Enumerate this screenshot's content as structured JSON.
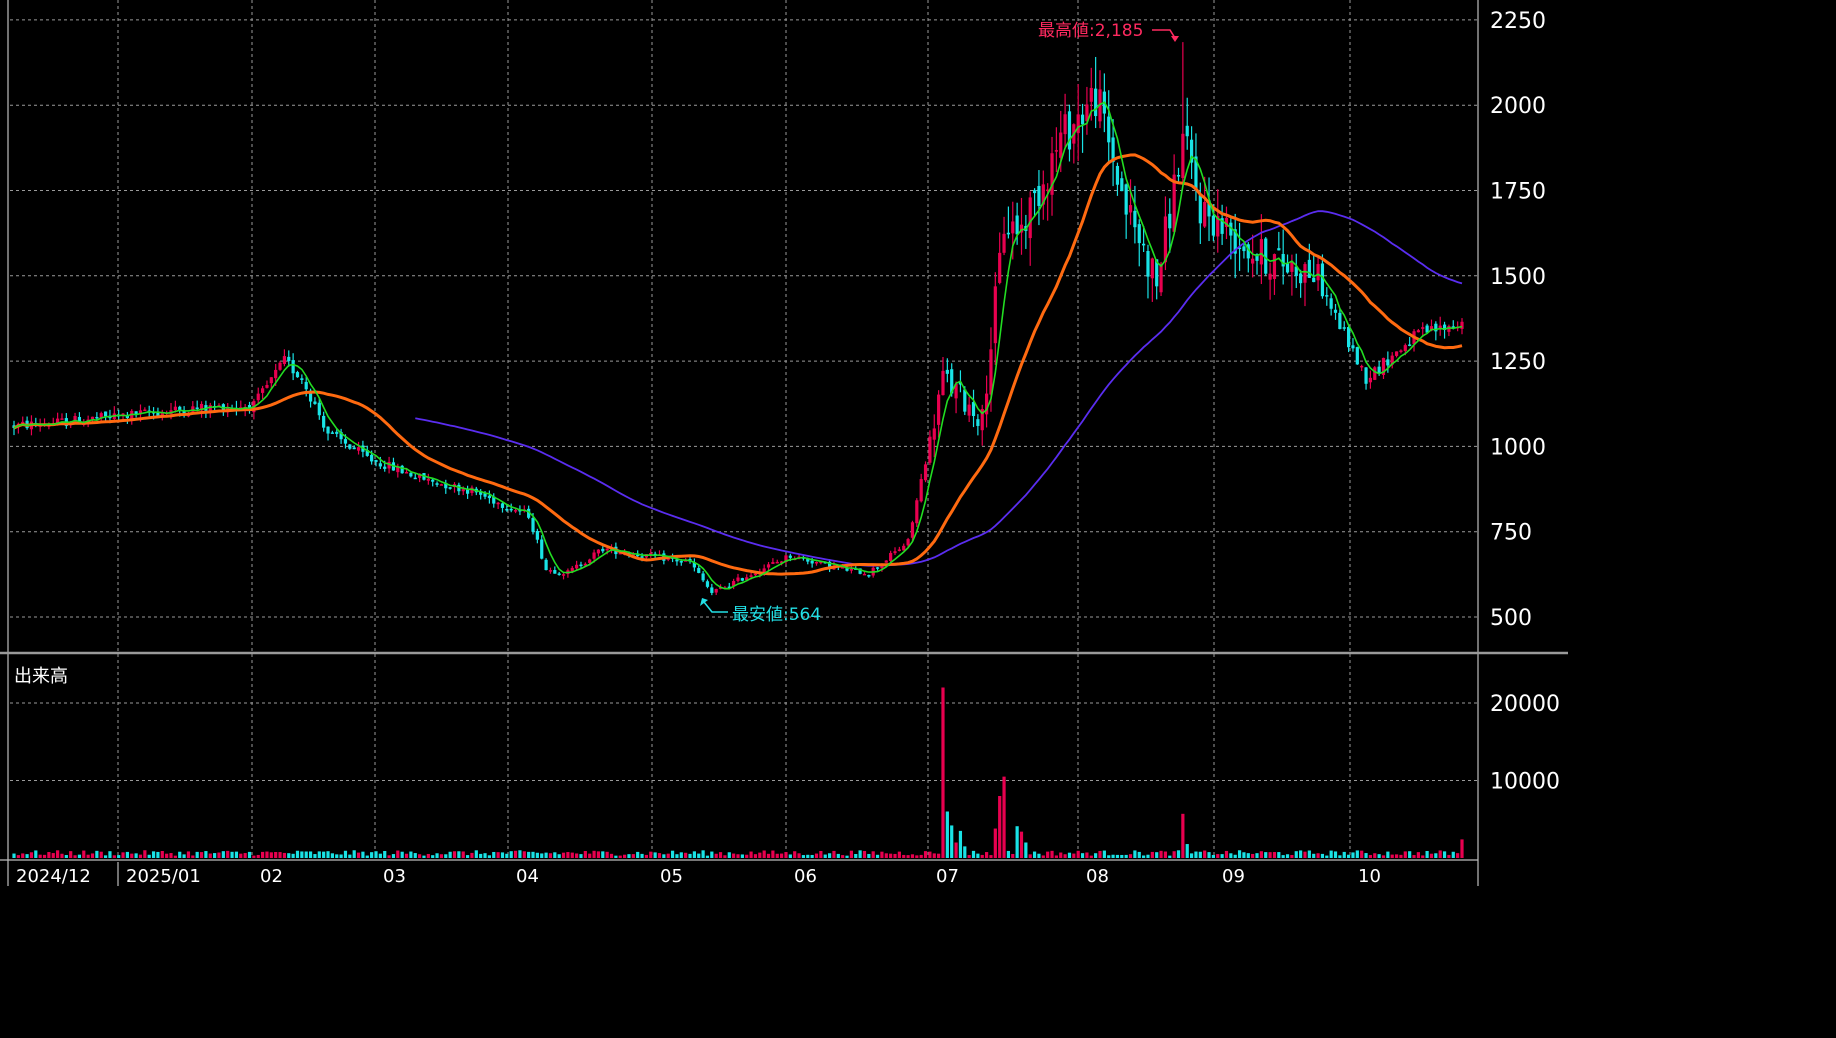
{
  "chart_data": {
    "type": "candlestick",
    "price_axis": {
      "ylim": [
        400,
        2300
      ],
      "ticks": [
        500,
        750,
        1000,
        1250,
        1500,
        1750,
        2000,
        2250
      ]
    },
    "volume_axis": {
      "ylim": [
        0,
        22000
      ],
      "ticks": [
        10000,
        20000
      ]
    },
    "volume_panel_title": "出来高",
    "x_labels": [
      "2024/12",
      "2025/01",
      "02",
      "03",
      "04",
      "05",
      "06",
      "07",
      "08",
      "09",
      "10"
    ],
    "annotations": {
      "high_label": "最高値:2,185",
      "low_label": "最安値:564"
    },
    "colors": {
      "up": "#e8004f",
      "down": "#19e3e6",
      "ma_short": "#22dd22",
      "ma_mid": "#ff6a10",
      "ma_long": "#5a2df0",
      "high_label": "#ff2a60",
      "low_label": "#22e0e6",
      "grid": "#9a9a9a"
    },
    "price_key_points": [
      [
        0,
        1060
      ],
      [
        10,
        1070
      ],
      [
        25,
        1090
      ],
      [
        40,
        1110
      ],
      [
        55,
        1120
      ],
      [
        62,
        1250
      ],
      [
        66,
        1200
      ],
      [
        72,
        1040
      ],
      [
        82,
        960
      ],
      [
        95,
        900
      ],
      [
        105,
        870
      ],
      [
        112,
        830
      ],
      [
        118,
        800
      ],
      [
        122,
        640
      ],
      [
        127,
        630
      ],
      [
        135,
        700
      ],
      [
        145,
        680
      ],
      [
        155,
        660
      ],
      [
        160,
        570
      ],
      [
        168,
        620
      ],
      [
        178,
        680
      ],
      [
        190,
        640
      ],
      [
        196,
        630
      ],
      [
        205,
        720
      ],
      [
        213,
        1200
      ],
      [
        222,
        1080
      ],
      [
        227,
        1650
      ],
      [
        231,
        1640
      ],
      [
        240,
        1900
      ],
      [
        248,
        2030
      ],
      [
        255,
        1700
      ],
      [
        262,
        1480
      ],
      [
        268,
        1900
      ],
      [
        272,
        1700
      ],
      [
        285,
        1560
      ],
      [
        298,
        1510
      ],
      [
        310,
        1200
      ],
      [
        322,
        1330
      ],
      [
        332,
        1360
      ]
    ]
  }
}
